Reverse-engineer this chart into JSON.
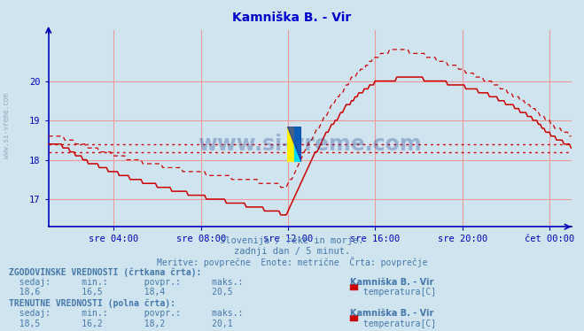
{
  "title": "Kamniška B. - Vir",
  "title_color": "#0000cc",
  "bg_color": "#d0e4f0",
  "plot_bg_color": "#d0e4f0",
  "axis_color": "#0000bb",
  "grid_color": "#ee9999",
  "text_color": "#4477aa",
  "ylabel_ticks": [
    17,
    18,
    19,
    20
  ],
  "ylim": [
    16.3,
    21.3
  ],
  "xlabel_ticks": [
    "sre 04:00",
    "sre 08:00",
    "sre 12:00",
    "sre 16:00",
    "sre 20:00",
    "čet 00:00"
  ],
  "xlabel_tick_pos": [
    0.125,
    0.292,
    0.458,
    0.625,
    0.792,
    0.958
  ],
  "hline1": 18.4,
  "hline2": 18.2,
  "subtitle1": "Slovenija / reke in morje.",
  "subtitle2": "zadnji dan / 5 minut.",
  "subtitle3": "Meritve: povprečne  Enote: metrične  Črta: povprečje",
  "hist_label_bold": "ZGODOVINSKE VREDNOSTI (črtkana črta):",
  "hist_station": "Kamniška B. - Vir",
  "hist_series": "temperatura[C]",
  "curr_label_bold": "TRENUTNE VREDNOSTI (polna črta):",
  "curr_station": "Kamniška B. - Vir",
  "curr_series": "temperatura[C]",
  "line_color": "#cc0000",
  "watermark_text": "www.si-vreme.com",
  "watermark_color": "#1a3a8a",
  "left_label": "www.si-vreme.com",
  "xlim": [
    0,
    1.0
  ]
}
